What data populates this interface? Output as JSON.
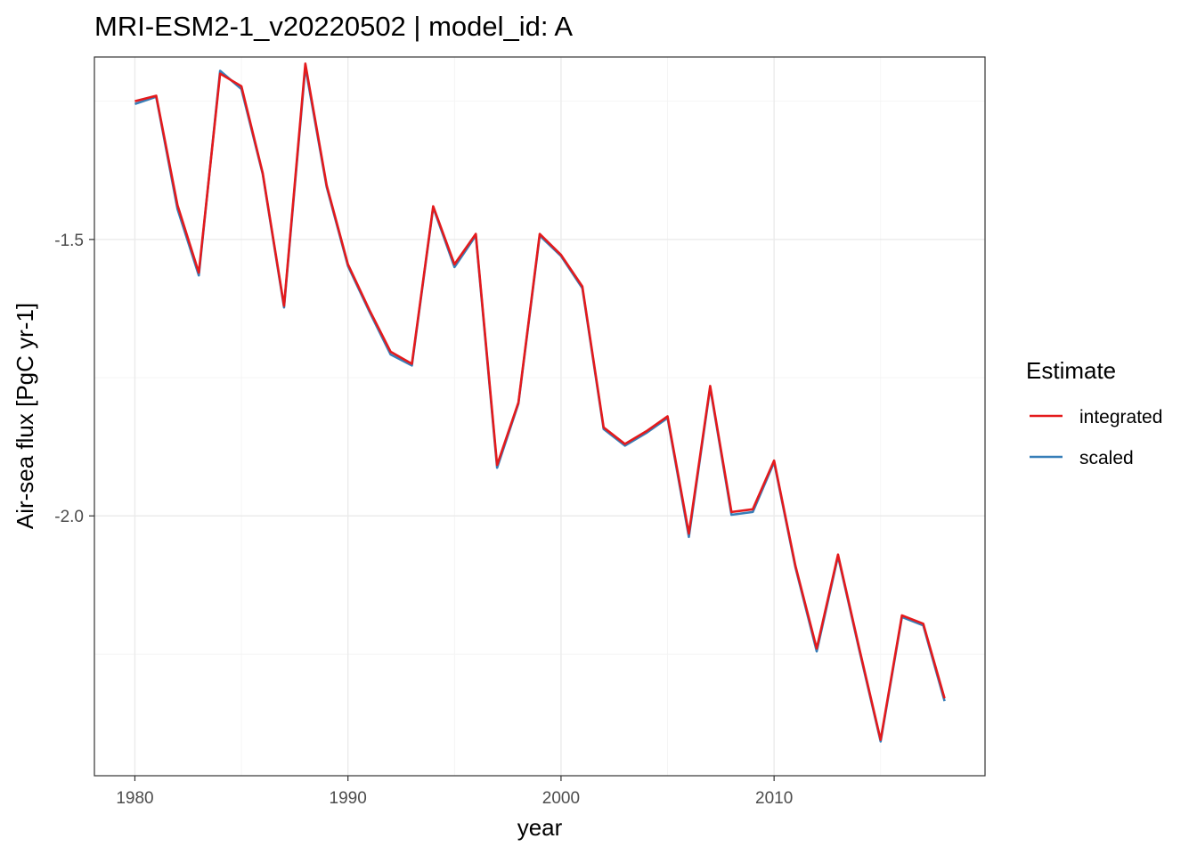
{
  "chart_data": {
    "type": "line",
    "title": "MRI-ESM2-1_v20220502 | model_id: A",
    "xlabel": "year",
    "ylabel": "Air-sea flux [PgC yr-1]",
    "xlim": [
      1978.1,
      2019.9
    ],
    "ylim": [
      -2.47,
      -1.17
    ],
    "x_ticks": [
      1980,
      1990,
      2000,
      2010
    ],
    "x_minor_ticks": [
      1985,
      1995,
      2005,
      2015
    ],
    "y_ticks": [
      -2.0,
      -1.5
    ],
    "y_tick_labels": [
      "-2.0",
      "-1.5"
    ],
    "y_minor_ticks": [
      -2.25,
      -1.75,
      -1.25
    ],
    "grid": true,
    "legend": {
      "title": "Estimate",
      "position": "right"
    },
    "x": [
      1980,
      1981,
      1982,
      1983,
      1984,
      1985,
      1986,
      1987,
      1988,
      1989,
      1990,
      1991,
      1992,
      1993,
      1994,
      1995,
      1996,
      1997,
      1998,
      1999,
      2000,
      2001,
      2002,
      2003,
      2004,
      2005,
      2006,
      2007,
      2008,
      2009,
      2010,
      2011,
      2012,
      2013,
      2014,
      2015,
      2016,
      2017,
      2018
    ],
    "series": [
      {
        "name": "scaled",
        "color": "#377eb8",
        "values": [
          -1.255,
          -1.242,
          -1.445,
          -1.565,
          -1.195,
          -1.228,
          -1.382,
          -1.623,
          -1.188,
          -1.405,
          -1.548,
          -1.63,
          -1.708,
          -1.728,
          -1.442,
          -1.55,
          -1.493,
          -1.913,
          -1.797,
          -1.493,
          -1.53,
          -1.588,
          -1.843,
          -1.873,
          -1.85,
          -1.823,
          -2.038,
          -1.768,
          -1.998,
          -1.993,
          -1.903,
          -2.093,
          -2.245,
          -2.073,
          -2.243,
          -2.408,
          -2.183,
          -2.198,
          -2.335
        ]
      },
      {
        "name": "integrated",
        "color": "#e41a1c",
        "values": [
          -1.25,
          -1.24,
          -1.438,
          -1.56,
          -1.2,
          -1.223,
          -1.38,
          -1.62,
          -1.182,
          -1.402,
          -1.545,
          -1.627,
          -1.703,
          -1.725,
          -1.44,
          -1.545,
          -1.49,
          -1.908,
          -1.795,
          -1.49,
          -1.528,
          -1.585,
          -1.84,
          -1.87,
          -1.847,
          -1.82,
          -2.032,
          -1.765,
          -1.993,
          -1.988,
          -1.9,
          -2.09,
          -2.24,
          -2.07,
          -2.24,
          -2.405,
          -2.18,
          -2.195,
          -2.33
        ]
      }
    ]
  }
}
